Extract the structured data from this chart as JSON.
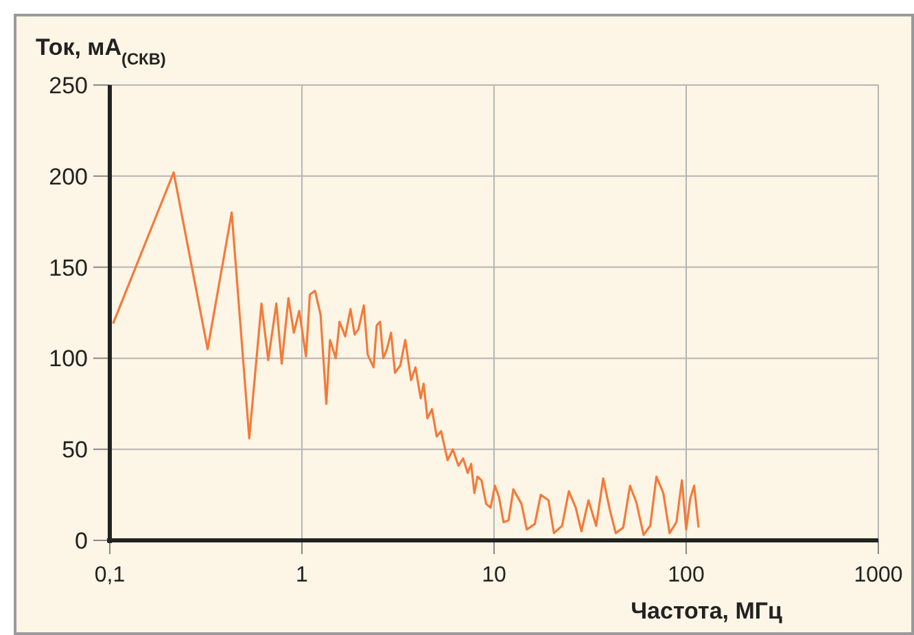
{
  "chart_data": {
    "type": "line",
    "ylabel": "Ток, мА$_{(СКВ)}$",
    "xlabel": "Частота, МГц",
    "log": "x",
    "grid": true,
    "line_style": "solid",
    "marker": "none",
    "xlim": [
      0.1,
      1000
    ],
    "xticks": [
      {
        "value": 0.1,
        "label": "0,1"
      },
      1,
      10,
      100,
      1000
    ],
    "ylim": [
      0,
      250
    ],
    "yticks": [
      0,
      50,
      100,
      150,
      200,
      250
    ],
    "series": [
      {
        "color": "#f47a3a",
        "x": [
          0.104,
          0.215,
          0.323,
          0.431,
          0.532,
          0.616,
          0.668,
          0.736,
          0.785,
          0.851,
          0.908,
          0.968,
          1.05,
          1.1,
          1.17,
          1.25,
          1.34,
          1.4,
          1.5,
          1.57,
          1.68,
          1.79,
          1.88,
          1.97,
          2.1,
          2.2,
          2.36,
          2.45,
          2.55,
          2.65,
          2.77,
          2.91,
          3.05,
          3.25,
          3.45,
          3.7,
          3.9,
          4.15,
          4.3,
          4.5,
          4.75,
          5.03,
          5.3,
          5.73,
          6.1,
          6.53,
          6.9,
          7.3,
          7.6,
          7.9,
          8.2,
          8.6,
          9.1,
          9.6,
          10.1,
          10.6,
          11.2,
          11.9,
          12.6,
          13.9,
          14.8,
          16.3,
          17.5,
          19.2,
          20.5,
          22.6,
          24.5,
          26.6,
          28.5,
          31,
          34,
          37,
          40,
          43,
          47,
          51,
          55,
          60,
          65,
          70,
          76,
          82,
          89,
          95,
          100,
          105,
          110,
          116
        ],
        "values": [
          119,
          202,
          105,
          180,
          56,
          130,
          99,
          130,
          97,
          133,
          114,
          126,
          101,
          135,
          137,
          124,
          75,
          110,
          100,
          120,
          112,
          127,
          113,
          116,
          129,
          102,
          95,
          118,
          120,
          100,
          105,
          114,
          92,
          96,
          110,
          88,
          95,
          78,
          86,
          67,
          72,
          57,
          60,
          44,
          50,
          41,
          45,
          37,
          42,
          26,
          35,
          33,
          20,
          18,
          30,
          24,
          10,
          11,
          28,
          20,
          6,
          9,
          25,
          22,
          4,
          8,
          27,
          18,
          5,
          22,
          8,
          34,
          17,
          4,
          7,
          30,
          21,
          3,
          8,
          35,
          26,
          4,
          10,
          33,
          6,
          23,
          30,
          7
        ]
      }
    ]
  }
}
